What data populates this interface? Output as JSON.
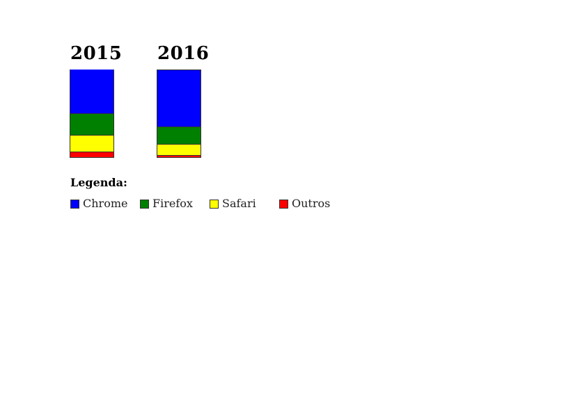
{
  "chart_data": {
    "type": "bar",
    "stacked": true,
    "categories": [
      "2015",
      "2016"
    ],
    "series": [
      {
        "name": "Chrome",
        "color": "#0000ff",
        "values": [
          50,
          65
        ]
      },
      {
        "name": "Firefox",
        "color": "#008000",
        "values": [
          25,
          20
        ]
      },
      {
        "name": "Safari",
        "color": "#ffff00",
        "values": [
          19,
          13
        ]
      },
      {
        "name": "Outros",
        "color": "#ff0000",
        "values": [
          6,
          2
        ]
      }
    ],
    "ylim": [
      0,
      100
    ],
    "grid": false,
    "legend": {
      "title": "Legenda:",
      "placement": "bottom-left"
    }
  }
}
